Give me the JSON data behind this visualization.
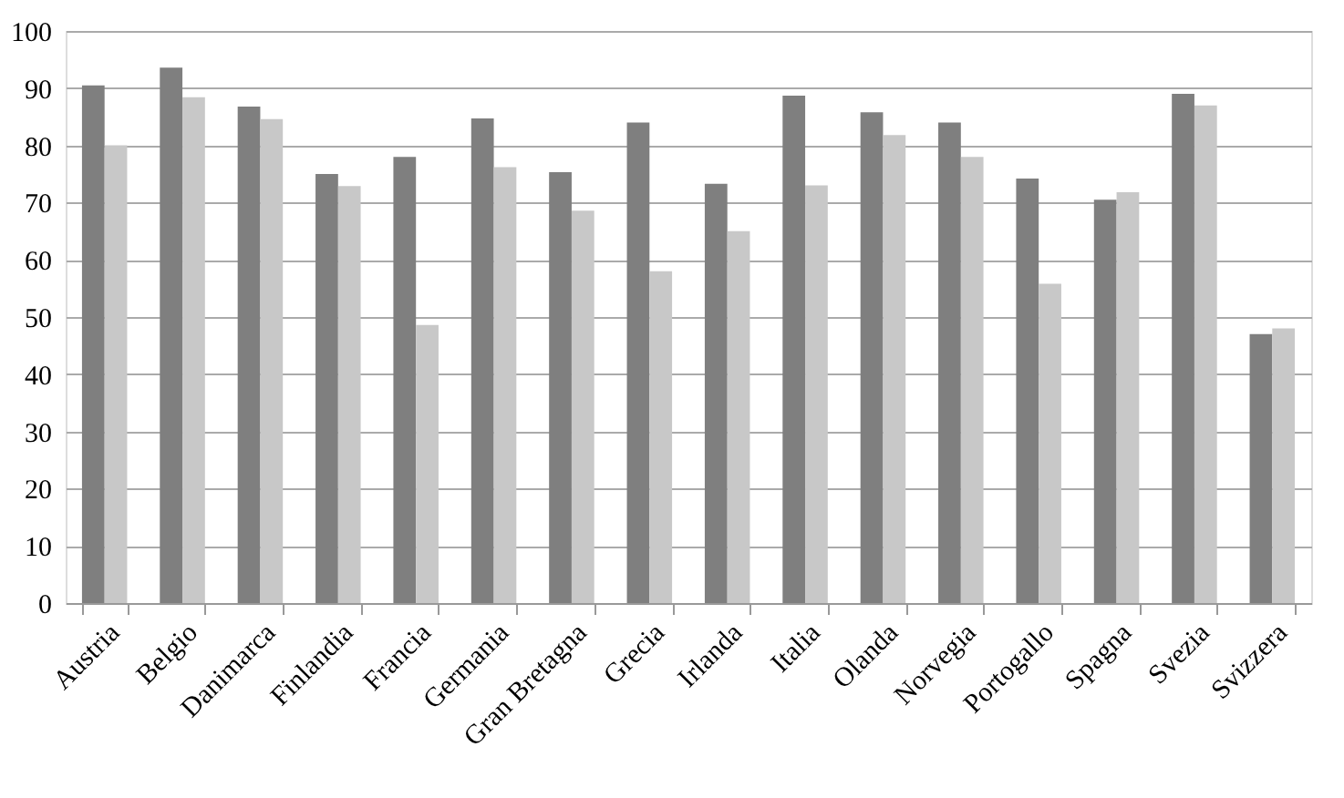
{
  "chart_data": {
    "type": "bar",
    "categories": [
      "Austria",
      "Belgio",
      "Danimarca",
      "Finlandia",
      "Francia",
      "Germania",
      "Gran Bretagna",
      "Grecia",
      "Irlanda",
      "Italia",
      "Olanda",
      "Norvegia",
      "Portogallo",
      "Spagna",
      "Svezia",
      "Svizzera"
    ],
    "series": [
      {
        "color": "#7f7f7f",
        "values": [
          90.5,
          93.6,
          86.8,
          75,
          78,
          84.7,
          75.3,
          84,
          73.3,
          88.7,
          85.8,
          84,
          74.2,
          70.5,
          89,
          47
        ]
      },
      {
        "color": "#c8c8c8",
        "values": [
          80,
          88.4,
          84.6,
          72.9,
          48.6,
          76.2,
          68.6,
          58,
          65,
          73,
          81.8,
          78,
          55.8,
          71.8,
          87,
          48
        ]
      }
    ],
    "ylim": [
      0,
      100
    ],
    "yticks": [
      0,
      10,
      20,
      30,
      40,
      50,
      60,
      70,
      80,
      90,
      100
    ],
    "grid": "y"
  }
}
